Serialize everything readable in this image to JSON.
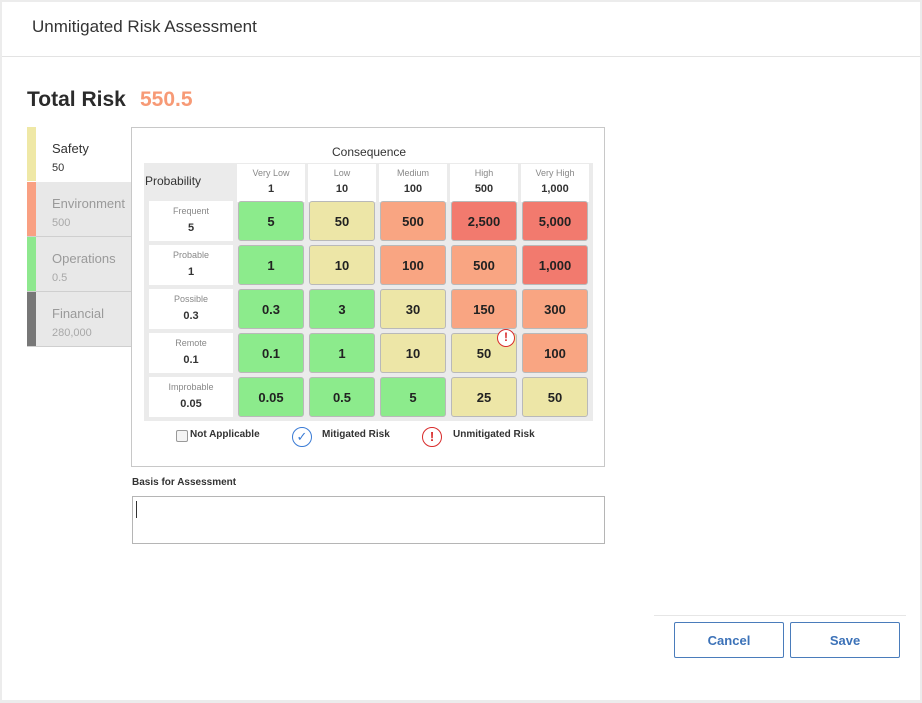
{
  "header": {
    "title": "Unmitigated Risk Assessment"
  },
  "total_risk": {
    "label": "Total Risk",
    "value": "550.5",
    "color": "#f79a76"
  },
  "tabs": [
    {
      "label": "Safety",
      "value": "50",
      "color": "#efe8a6",
      "active": true
    },
    {
      "label": "Environment",
      "value": "500",
      "color": "#f9a082",
      "active": false
    },
    {
      "label": "Operations",
      "value": "0.5",
      "color": "#8ee88e",
      "active": false
    },
    {
      "label": "Financial",
      "value": "280,000",
      "color": "#777777",
      "active": false
    }
  ],
  "matrix": {
    "consequence_title": "Consequence",
    "probability_title": "Probability",
    "columns": [
      {
        "name": "Very Low",
        "value": "1"
      },
      {
        "name": "Low",
        "value": "10"
      },
      {
        "name": "Medium",
        "value": "100"
      },
      {
        "name": "High",
        "value": "500"
      },
      {
        "name": "Very High",
        "value": "1,000"
      }
    ],
    "rows": [
      {
        "name": "Frequent",
        "value": "5",
        "cells": [
          {
            "v": "5",
            "c": "green"
          },
          {
            "v": "50",
            "c": "yellow"
          },
          {
            "v": "500",
            "c": "orange"
          },
          {
            "v": "2,500",
            "c": "red"
          },
          {
            "v": "5,000",
            "c": "red"
          }
        ]
      },
      {
        "name": "Probable",
        "value": "1",
        "cells": [
          {
            "v": "1",
            "c": "green"
          },
          {
            "v": "10",
            "c": "yellow"
          },
          {
            "v": "100",
            "c": "orange"
          },
          {
            "v": "500",
            "c": "orange"
          },
          {
            "v": "1,000",
            "c": "red"
          }
        ]
      },
      {
        "name": "Possible",
        "value": "0.3",
        "cells": [
          {
            "v": "0.3",
            "c": "green"
          },
          {
            "v": "3",
            "c": "green"
          },
          {
            "v": "30",
            "c": "yellow"
          },
          {
            "v": "150",
            "c": "orange"
          },
          {
            "v": "300",
            "c": "orange"
          }
        ]
      },
      {
        "name": "Remote",
        "value": "0.1",
        "cells": [
          {
            "v": "0.1",
            "c": "green"
          },
          {
            "v": "1",
            "c": "green"
          },
          {
            "v": "10",
            "c": "yellow"
          },
          {
            "v": "50",
            "c": "yellow",
            "marker": "unmitigated"
          },
          {
            "v": "100",
            "c": "orange"
          }
        ]
      },
      {
        "name": "Improbable",
        "value": "0.05",
        "cells": [
          {
            "v": "0.05",
            "c": "green"
          },
          {
            "v": "0.5",
            "c": "green"
          },
          {
            "v": "5",
            "c": "green"
          },
          {
            "v": "25",
            "c": "yellow"
          },
          {
            "v": "50",
            "c": "yellow"
          }
        ]
      }
    ]
  },
  "legend": {
    "not_applicable": "Not Applicable",
    "mitigated": "Mitigated Risk",
    "unmitigated": "Unmitigated Risk"
  },
  "basis": {
    "label": "Basis for Assessment",
    "value": ""
  },
  "buttons": {
    "cancel": "Cancel",
    "save": "Save"
  }
}
